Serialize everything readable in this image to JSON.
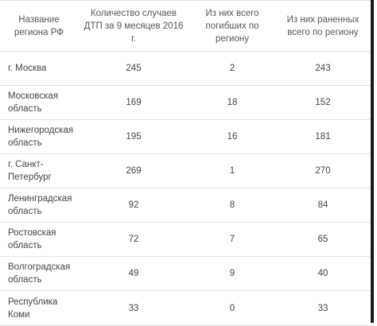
{
  "table": {
    "headers": [
      "Название региона РФ",
      "Количество случаев ДТП за 9 месяцев 2016 г.",
      "Из них всего погибших по региону",
      "Из них раненных всего по региону"
    ],
    "rows": [
      {
        "region": "г. Москва",
        "accidents": "245",
        "killed": "2",
        "injured": "243"
      },
      {
        "region": "Московская область",
        "accidents": "169",
        "killed": "18",
        "injured": "152"
      },
      {
        "region": "Нижегородская область",
        "accidents": "195",
        "killed": "16",
        "injured": "181"
      },
      {
        "region": "г. Санкт-Петербург",
        "accidents": "269",
        "killed": "1",
        "injured": "270"
      },
      {
        "region": "Ленинградская область",
        "accidents": "92",
        "killed": "8",
        "injured": "84"
      },
      {
        "region": "Ростовская область",
        "accidents": "72",
        "killed": "7",
        "injured": "65"
      },
      {
        "region": "Волгоградская область",
        "accidents": "49",
        "killed": "9",
        "injured": "40"
      },
      {
        "region": "Республика Коми",
        "accidents": "33",
        "killed": "0",
        "injured": "33"
      }
    ]
  }
}
